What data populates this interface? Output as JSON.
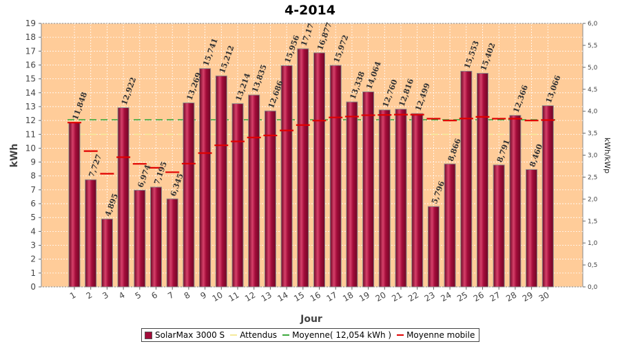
{
  "chart_data": {
    "type": "bar",
    "title": "4-2014",
    "xlabel": "Jour",
    "ylabel": "kWh",
    "y2label": "kWh/kWp",
    "ylim": [
      0,
      19
    ],
    "y2lim": [
      0,
      6
    ],
    "categories": [
      "1",
      "2",
      "3",
      "4",
      "5",
      "6",
      "7",
      "8",
      "9",
      "10",
      "11",
      "12",
      "13",
      "14",
      "15",
      "16",
      "17",
      "18",
      "19",
      "20",
      "21",
      "22",
      "23",
      "24",
      "25",
      "26",
      "27",
      "28",
      "29",
      "30"
    ],
    "y_ticks": [
      "0",
      "1",
      "2",
      "3",
      "4",
      "5",
      "6",
      "7",
      "8",
      "9",
      "10",
      "11",
      "12",
      "13",
      "14",
      "15",
      "16",
      "17",
      "18",
      "19"
    ],
    "y2_ticks": [
      "0,0",
      "0,5",
      "1,0",
      "1,5",
      "2,0",
      "2,5",
      "3,0",
      "3,5",
      "4,0",
      "4,5",
      "5,0",
      "5,5",
      "6,0"
    ],
    "series": [
      {
        "name": "SolarMax 3000 S",
        "values": [
          11.848,
          7.727,
          4.895,
          12.922,
          6.974,
          7.195,
          6.345,
          13.269,
          15.741,
          15.212,
          13.214,
          13.835,
          12.686,
          15.956,
          17.17,
          16.877,
          15.972,
          13.338,
          14.064,
          12.76,
          12.816,
          12.499,
          5.796,
          8.866,
          15.553,
          15.402,
          8.791,
          12.366,
          8.46,
          13.066
        ],
        "labels": [
          "11,848",
          "7,727",
          "4,895",
          "12,922",
          "6,974",
          "7,195",
          "6,345",
          "13,269",
          "15,741",
          "15,212",
          "13,214",
          "13,835",
          "12,686",
          "15,956",
          "17,17",
          "16,877",
          "15,972",
          "13,338",
          "14,064",
          "12,760",
          "12,816",
          "12,499",
          "5,796",
          "8,866",
          "15,553",
          "15,402",
          "8,791",
          "12,366",
          "8,460",
          "13,066"
        ]
      },
      {
        "name": "Moyenne mobile",
        "values": [
          11.848,
          9.79,
          8.16,
          9.35,
          8.87,
          8.59,
          8.27,
          8.89,
          9.65,
          10.21,
          10.49,
          10.77,
          10.92,
          11.28,
          11.67,
          11.99,
          12.22,
          12.28,
          12.38,
          12.4,
          12.42,
          12.42,
          12.13,
          12.0,
          12.14,
          12.26,
          12.13,
          12.13,
          12.0,
          12.03
        ]
      }
    ],
    "reference_lines": [
      {
        "name": "Attendus",
        "value": 11.0,
        "color": "#f5e99a"
      },
      {
        "name": "Moyenne( 12,054 kWh )",
        "value": 12.054,
        "color": "#3ca83c"
      }
    ],
    "colors": {
      "bar": "#a30c3a",
      "bar_dark": "#6e0825",
      "bar_light": "#d6406a",
      "plot_bg": "#ffcc99",
      "moving_avg": "#e00000"
    },
    "legend_position": "bottom",
    "grid": true
  },
  "legend": {
    "items": [
      "SolarMax 3000 S",
      "Attendus",
      "Moyenne( 12,054 kWh )",
      "Moyenne mobile"
    ]
  }
}
